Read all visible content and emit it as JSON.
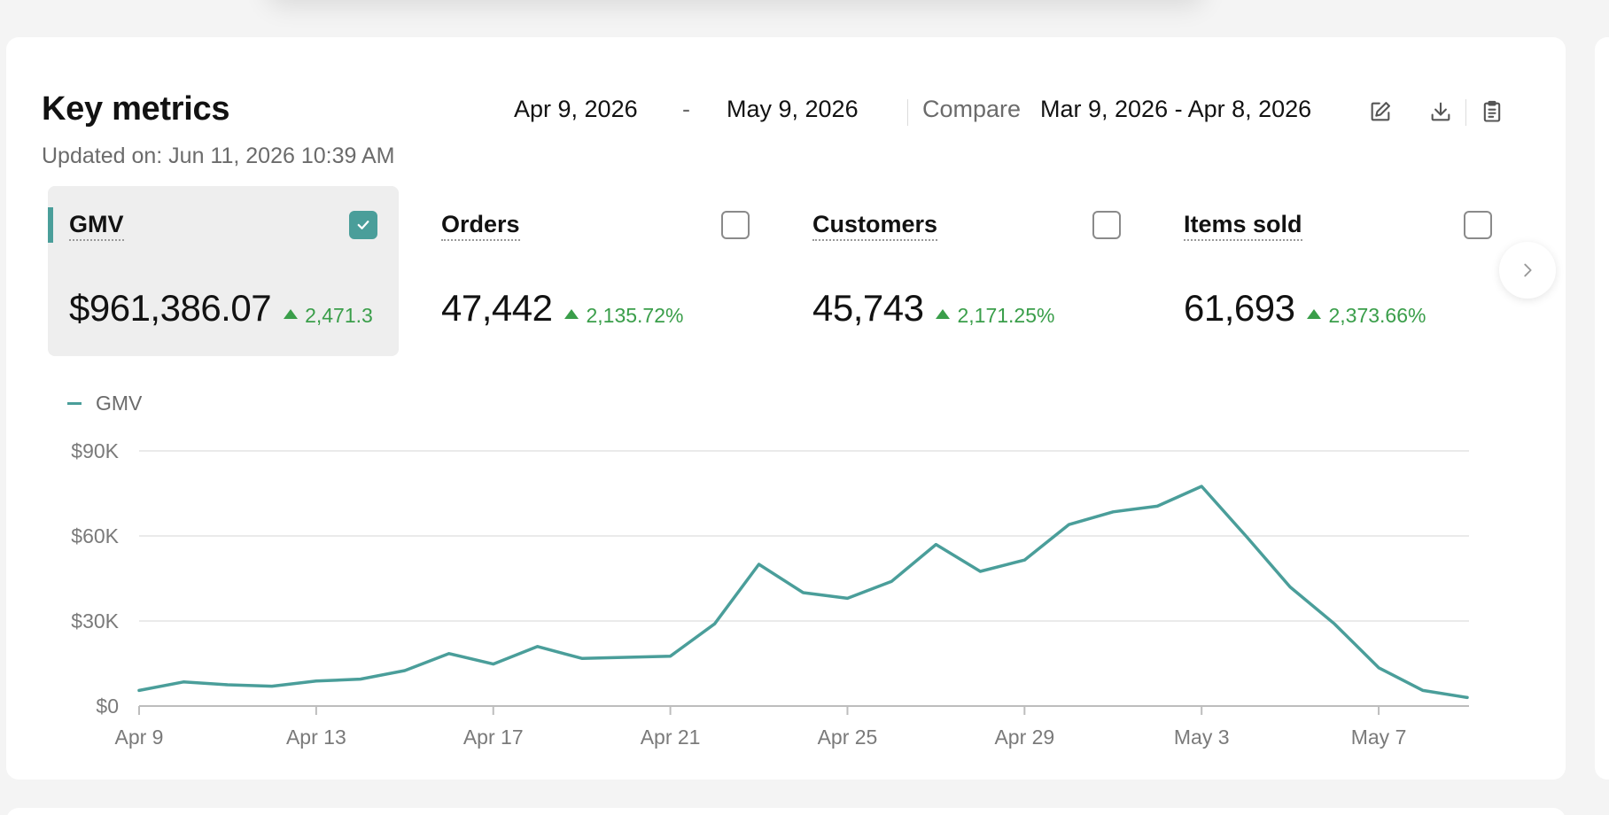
{
  "page": {
    "title_fragment": ""
  },
  "card": {
    "title": "Key metrics",
    "updated": "Updated on: Jun 11, 2026 10:39 AM",
    "date_start": "Apr 9, 2026",
    "date_separator": "-",
    "date_end": "May 9, 2026",
    "compare_label": "Compare",
    "compare_range": "Mar 9, 2026 - Apr 8, 2026",
    "icons": [
      "edit-icon",
      "download-icon",
      "clipboard-icon"
    ]
  },
  "metrics": [
    {
      "label": "GMV",
      "value": "$961,386.07",
      "delta": "2,471.3",
      "checked": true
    },
    {
      "label": "Orders",
      "value": "47,442",
      "delta": "2,135.72%",
      "checked": false
    },
    {
      "label": "Customers",
      "value": "45,743",
      "delta": "2,171.25%",
      "checked": false
    },
    {
      "label": "Items sold",
      "value": "61,693",
      "delta": "2,373.66%",
      "checked": false
    }
  ],
  "colors": {
    "accent": "#4a9e9a",
    "positive": "#3a9e4a"
  },
  "chart_data": {
    "type": "line",
    "legend": "GMV",
    "y_ticks": [
      "$0",
      "$30K",
      "$60K",
      "$90K"
    ],
    "ylim": [
      0,
      90000
    ],
    "x_ticks": [
      "Apr 9",
      "Apr 13",
      "Apr 17",
      "Apr 21",
      "Apr 25",
      "Apr 29",
      "May 3",
      "May 7"
    ],
    "series": [
      {
        "name": "GMV",
        "x": [
          "Apr 9",
          "Apr 10",
          "Apr 11",
          "Apr 12",
          "Apr 13",
          "Apr 14",
          "Apr 15",
          "Apr 16",
          "Apr 17",
          "Apr 18",
          "Apr 19",
          "Apr 20",
          "Apr 21",
          "Apr 22",
          "Apr 23",
          "Apr 24",
          "Apr 25",
          "Apr 26",
          "Apr 27",
          "Apr 28",
          "Apr 29",
          "Apr 30",
          "May 1",
          "May 2",
          "May 3",
          "May 4",
          "May 5",
          "May 6",
          "May 7",
          "May 8",
          "May 9"
        ],
        "values": [
          5500,
          8500,
          7500,
          7000,
          8800,
          9500,
          12500,
          18500,
          14800,
          21000,
          16800,
          17200,
          17600,
          29000,
          50000,
          40000,
          38000,
          44000,
          57000,
          47500,
          51500,
          64000,
          68500,
          70500,
          77500,
          60000,
          42000,
          29000,
          13500,
          5500,
          3000
        ]
      }
    ]
  }
}
